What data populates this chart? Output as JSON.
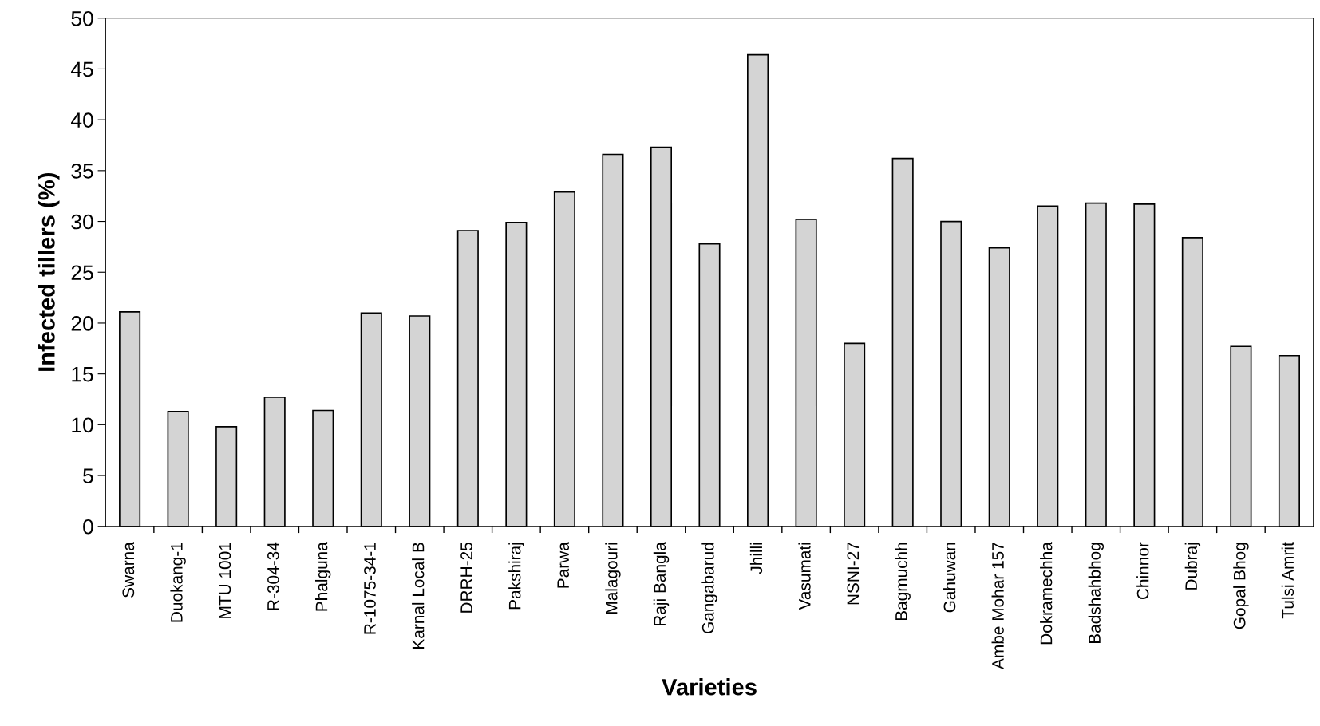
{
  "chart_data": {
    "type": "bar",
    "xlabel": "Varieties",
    "ylabel": "Infected tillers (%)",
    "categories": [
      "Swarna",
      "Duokang-1",
      "MTU 1001",
      "R-304-34",
      "Phalguna",
      "R-1075-34-1",
      "Karnal Local B",
      "DRRH-25",
      "Pakshiraj",
      "Parwa",
      "Malagouri",
      "Raji Bangla",
      "Gangabarud",
      "Jhilli",
      "Vasumati",
      "NSNI-27",
      "Bagmuchh",
      "Gahuwan",
      "Ambe Mohar 157",
      "Dokramechha",
      "Badshahbhog",
      "Chinnor",
      "Dubraj",
      "Gopal Bhog",
      "Tulsi Amrit"
    ],
    "values": [
      21.1,
      11.3,
      9.8,
      12.7,
      11.4,
      21.0,
      20.7,
      29.1,
      29.9,
      32.9,
      36.6,
      37.3,
      27.8,
      46.4,
      30.2,
      18.0,
      36.2,
      30.0,
      27.4,
      31.5,
      31.8,
      31.7,
      28.4,
      17.7,
      16.8
    ],
    "color": "#d4d4d4",
    "ylim": [
      0,
      50
    ],
    "yticks": [
      0,
      5,
      10,
      15,
      20,
      25,
      30,
      35,
      40,
      45,
      50
    ],
    "grid": false,
    "legend": false
  }
}
